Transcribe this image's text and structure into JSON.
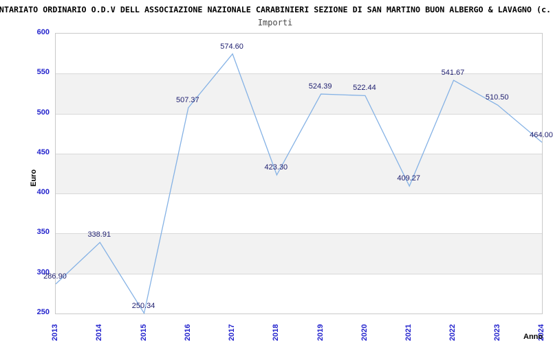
{
  "header": {
    "title": "NTARIATO ORDINARIO O.D.V DELL ASSOCIAZIONE NAZIONALE CARABINIERI SEZIONE DI SAN MARTINO BUON ALBERGO & LAVAGNO (c.",
    "subtitle": "Importi"
  },
  "chart_data": {
    "type": "line",
    "title": "Importi",
    "xlabel": "Anno",
    "ylabel": "Euro",
    "categories": [
      "2013",
      "2014",
      "2015",
      "2016",
      "2017",
      "2018",
      "2019",
      "2020",
      "2021",
      "2022",
      "2023",
      "2024"
    ],
    "series": [
      {
        "name": "Importi",
        "values": [
          286.9,
          338.91,
          250.34,
          507.37,
          574.6,
          423.3,
          524.39,
          522.44,
          409.27,
          541.67,
          510.5,
          464.0
        ],
        "point_labels": [
          "286.90",
          "338.91",
          "250.34",
          "507.37",
          "574.60",
          "423.30",
          "524.39",
          "522.44",
          "409.27",
          "541.67",
          "510.50",
          "464.00"
        ]
      }
    ],
    "ylim": [
      250,
      600
    ],
    "ytick_step": 50,
    "ytick_labels": [
      "250",
      "300",
      "350",
      "400",
      "450",
      "500",
      "550",
      "600"
    ],
    "grid": "horizontal-only",
    "background_bands": "alternating gray/white every 50 units, gray from 550-500, 450-400, 350-300",
    "legend_position": "none",
    "colors": {
      "line": "#85b2e5",
      "tick_label": "#2323cd",
      "point_label": "#202070",
      "band_gray": "#f2f2f2",
      "gridline": "#d8d8d8",
      "plot_border": "#c9c9c9",
      "title": "#000000",
      "subtitle": "#474747",
      "axis_title": "#000000",
      "background": "#ffffff"
    }
  }
}
